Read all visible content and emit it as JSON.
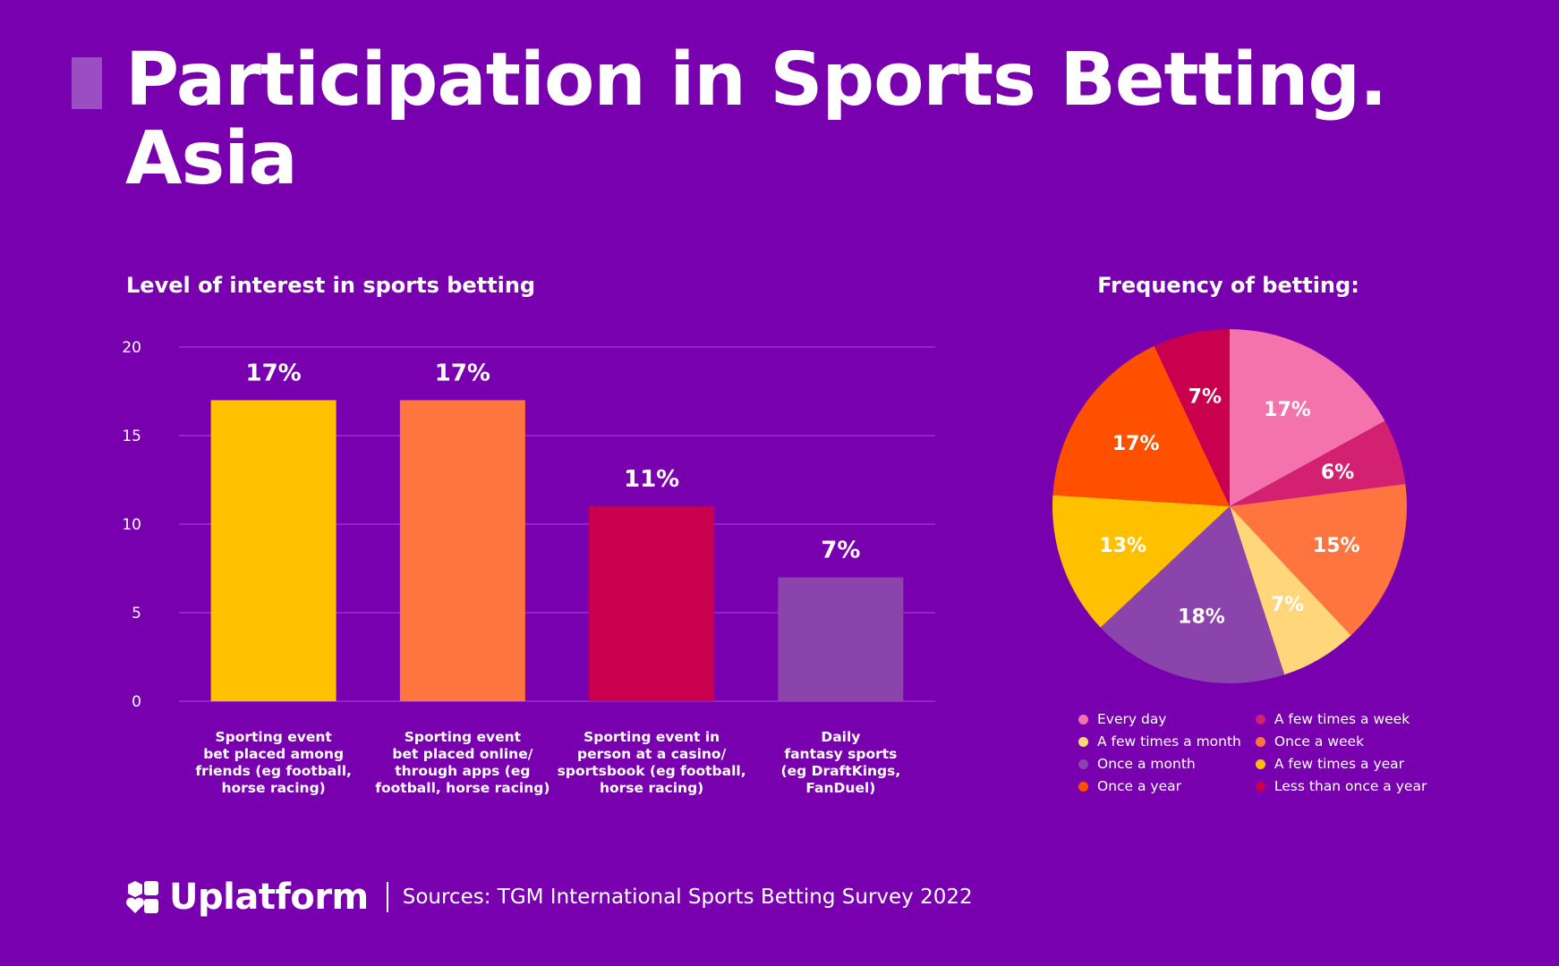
{
  "header": {
    "title_line1": "Participation in Sports Betting.",
    "title_line2": "Asia"
  },
  "footer": {
    "brand": "Uplatform",
    "sources": "Sources: TGM International Sports Betting Survey 2022"
  },
  "colors": {
    "background": "#7800AF",
    "accent_bar": "#9B4DC2"
  },
  "icons": {
    "logo": "uplatform-logo-icon"
  },
  "chart_data": [
    {
      "type": "bar",
      "title": "Level of interest in sports betting",
      "categories": [
        [
          "Sporting event",
          "bet placed among",
          "friends (eg football,",
          "horse racing)"
        ],
        [
          "Sporting event",
          "bet placed online/",
          "through apps (eg",
          "football, horse racing)"
        ],
        [
          "Sporting event in",
          "person at a casino/",
          "sportsbook (eg football,",
          "horse racing)"
        ],
        [
          "Daily",
          "fantasy sports",
          "(eg DraftKings,",
          "FanDuel)"
        ]
      ],
      "values": [
        17,
        17,
        11,
        7
      ],
      "data_labels": [
        "17%",
        "17%",
        "11%",
        "7%"
      ],
      "colors": [
        "#FFC000",
        "#FF7540",
        "#C8004D",
        "#8B44AB"
      ],
      "ylim": [
        0,
        20
      ],
      "yticks": [
        0,
        5,
        10,
        15,
        20
      ],
      "grid": true
    },
    {
      "type": "pie",
      "title": "Frequency of betting:",
      "labels": [
        "Every day",
        "A few times a week",
        "Once a week",
        "A few times a month",
        "Once a month",
        "A few times a year",
        "Once a year",
        "Less than once a year"
      ],
      "values": [
        17,
        6,
        15,
        7,
        18,
        13,
        17,
        7
      ],
      "data_labels": [
        "17%",
        "6%",
        "15%",
        "7%",
        "18%",
        "13%",
        "17%",
        "7%"
      ],
      "colors": [
        "#F573AC",
        "#D42070",
        "#FF7540",
        "#FFD67A",
        "#8B44AB",
        "#FFC000",
        "#FF5000",
        "#C8004D"
      ],
      "legend": {
        "placement": "bottom",
        "order": [
          "Every day",
          "A few times a week",
          "A few times a month",
          "Once a week",
          "Once a month",
          "A few times a year",
          "Once a year",
          "Less than once a year"
        ]
      }
    }
  ]
}
